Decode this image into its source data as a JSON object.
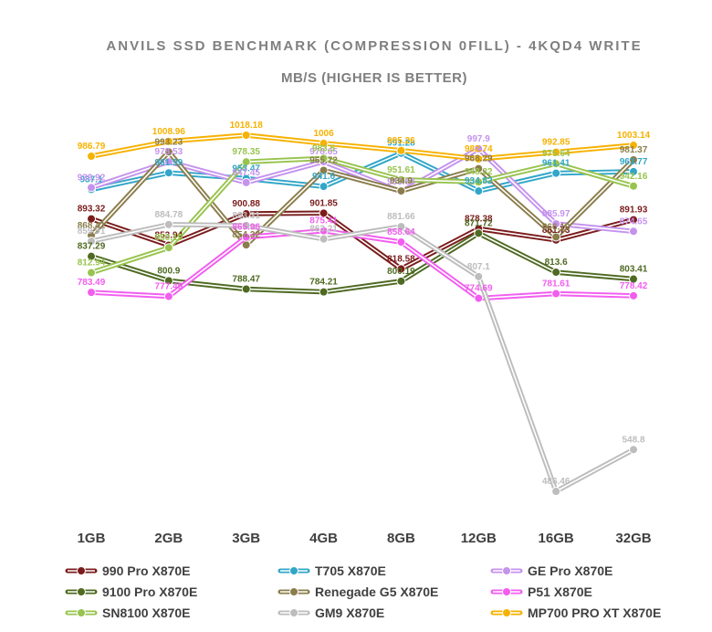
{
  "chart_data": {
    "type": "line",
    "title": "ANVILS SSD BENCHMARK (COMPRESSION 0FILL) - 4KQD4 WRITE",
    "subtitle": "MB/S (HIGHER IS BETTER)",
    "categories": [
      "1GB",
      "2GB",
      "3GB",
      "4GB",
      "8GB",
      "12GB",
      "16GB",
      "32GB"
    ],
    "ylim": [
      450,
      1030
    ],
    "grid": false,
    "legend_position": "bottom",
    "series": [
      {
        "name": "990 Pro X870E",
        "color": "#7b1c1c",
        "values": [
          893.32,
          853.94,
          900.88,
          901.85,
          818.58,
          878.38,
          861.73,
          891.93
        ]
      },
      {
        "name": "T705 X870E",
        "color": "#31a6c8",
        "values": [
          937.1,
          961.99,
          953.47,
          941.6,
          991.28,
          934.82,
          961.41,
          963.77
        ]
      },
      {
        "name": "GE Pro X870E",
        "color": "#c593ee",
        "values": [
          939.92,
          978.53,
          947.45,
          978.65,
          933.68,
          997.9,
          885.97,
          874.65
        ]
      },
      {
        "name": "9100 Pro X870E",
        "color": "#4f6a22",
        "values": [
          837.29,
          800.9,
          788.47,
          784.21,
          800.19,
          871.72,
          813.6,
          803.41
        ]
      },
      {
        "name": "Renegade G5 X870E",
        "color": "#8b7d4b",
        "values": [
          868.41,
          993.23,
          854.32,
          965.72,
          934.9,
          968.29,
          866.19,
          981.37
        ]
      },
      {
        "name": "P51 X870E",
        "color": "#f25df0",
        "values": [
          783.49,
          777.49,
          865.96,
          875.41,
          858.64,
          774.69,
          781.61,
          778.42
        ]
      },
      {
        "name": "SN8100 X870E",
        "color": "#98c44e",
        "values": [
          812.94,
          850.19,
          978.35,
          983.5,
          951.61,
          948.32,
          975.64,
          942.16
        ]
      },
      {
        "name": "GM9 X870E",
        "color": "#bdbdbd",
        "values": [
          859.91,
          884.78,
          883.31,
          863.21,
          881.66,
          807.1,
          486.46,
          548.8
        ]
      },
      {
        "name": "MP700 PRO XT X870E",
        "color": "#f6b200",
        "values": [
          986.79,
          1008.96,
          1018.18,
          1006,
          995.26,
          982.74,
          992.85,
          1003.14
        ]
      }
    ]
  }
}
